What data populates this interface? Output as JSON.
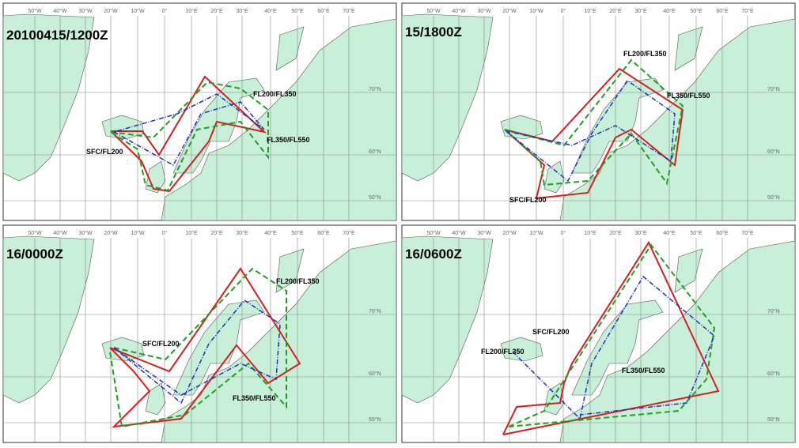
{
  "panels": [
    {
      "title": "20100415/1200Z",
      "labels": [
        "FL200/FL350",
        "FL350/FL550",
        "SFC/FL200"
      ]
    },
    {
      "title": "15/1800Z",
      "labels": [
        "FL200/FL350",
        "FL350/FL550",
        "SFC/FL200"
      ]
    },
    {
      "title": "16/0000Z",
      "labels": [
        "FL200/FL350",
        "SFC/FL200",
        "FL350/FL550"
      ]
    },
    {
      "title": "16/0600Z",
      "labels": [
        "SFC/FL200",
        "FL200/FL350",
        "FL350/FL550"
      ]
    }
  ],
  "graticule": {
    "longitudes": [
      "50°W",
      "40°W",
      "30°W",
      "20°W",
      "10°W",
      "0°",
      "10°E",
      "20°E",
      "30°E",
      "40°E",
      "50°E",
      "60°E",
      "70°E"
    ],
    "latitudes": [
      "70°N",
      "60°N",
      "50°N"
    ]
  }
}
